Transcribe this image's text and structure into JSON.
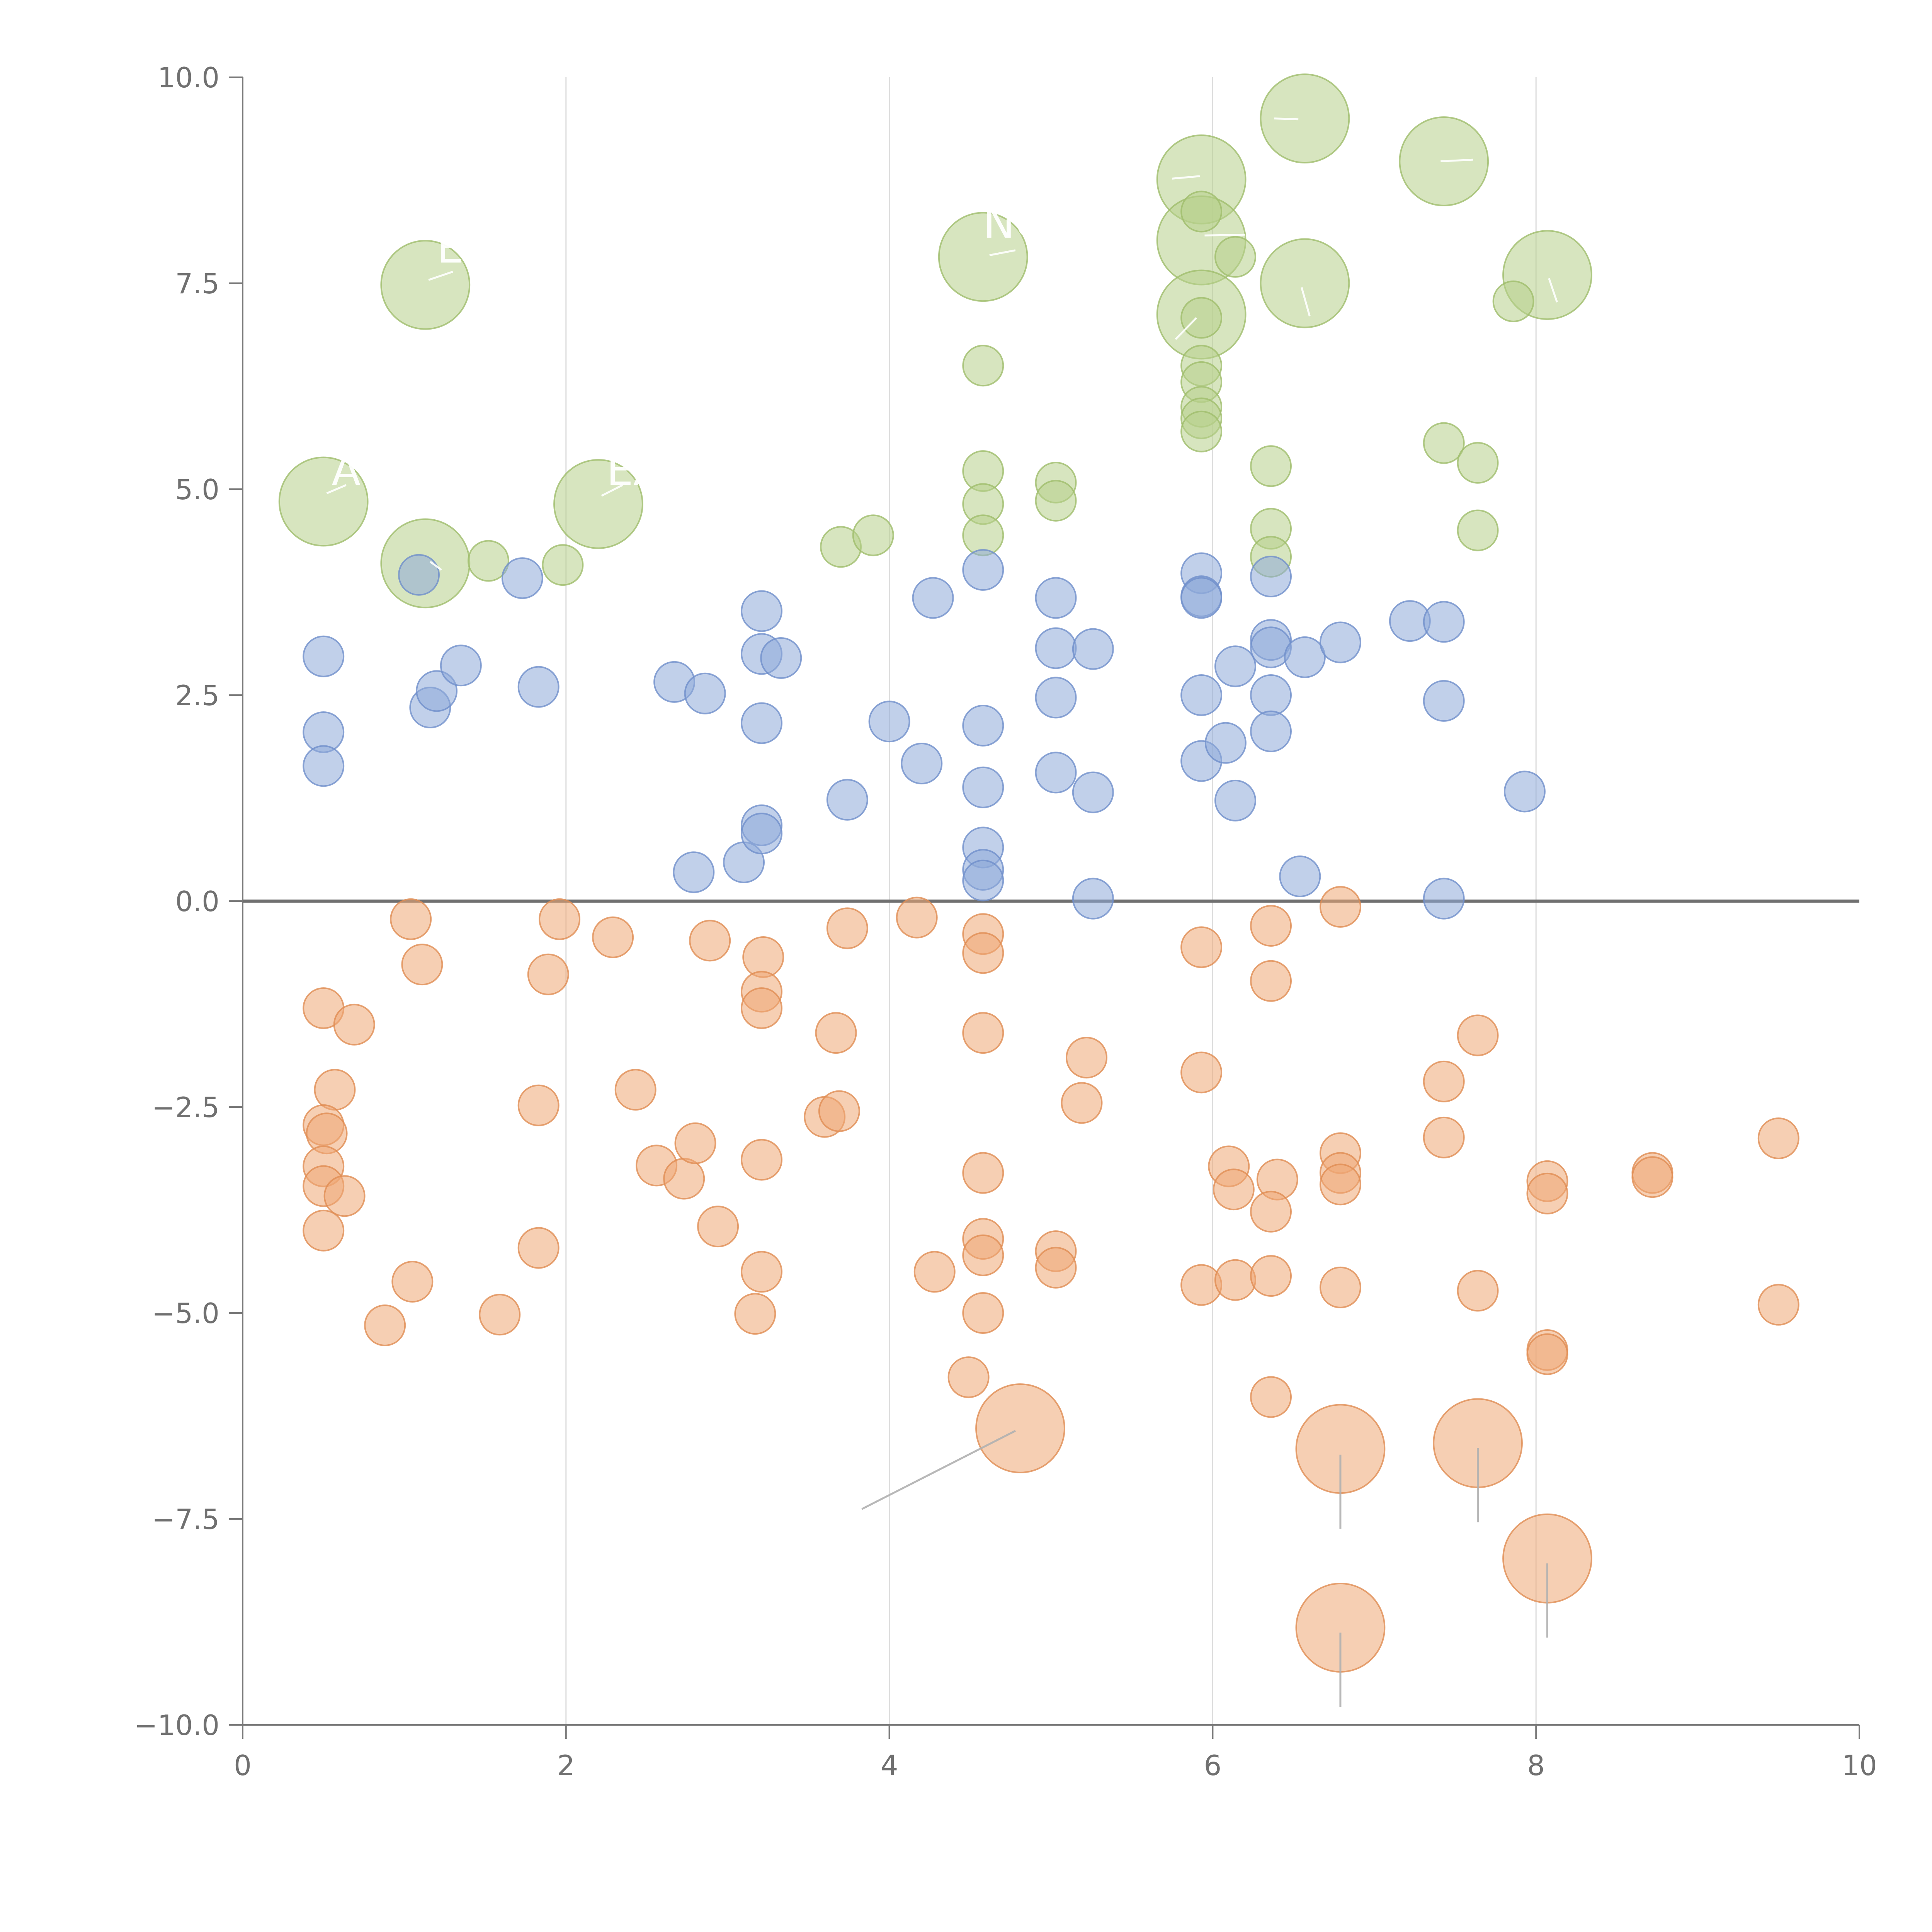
{
  "chart_data": {
    "type": "scatter",
    "title": "",
    "xlabel": "",
    "ylabel": "",
    "xlim": [
      0,
      10
    ],
    "ylim": [
      -10,
      10
    ],
    "x_ticks": [
      "0",
      "2",
      "4",
      "6",
      "8",
      "10"
    ],
    "y_ticks": [
      "10.0",
      "7.5",
      "5.0",
      "2.5",
      "0.0",
      "−2.5",
      "−5.0",
      "−7.5",
      "−10.0"
    ],
    "grid": "vertical",
    "zero_line": true,
    "legend": "none",
    "colors": {
      "green_fill": "#b7d08a",
      "green_stroke": "#9fbd6c",
      "blue_fill": "#8eaad9",
      "blue_stroke": "#6f8fcb",
      "orange_fill": "#eea774",
      "orange_stroke": "#e08c52"
    },
    "series": [
      {
        "color_key": "green",
        "points": [
          [
            0.5,
            4.85,
            2.2
          ],
          [
            1.13,
            7.48,
            2.2
          ],
          [
            1.13,
            4.1,
            2.2
          ],
          [
            2.2,
            4.82,
            2.2
          ],
          [
            4.58,
            7.82,
            2.2
          ],
          [
            5.93,
            8.76,
            2.2
          ],
          [
            5.93,
            8.02,
            2.2
          ],
          [
            5.93,
            7.12,
            2.2
          ],
          [
            6.57,
            9.5,
            2.2
          ],
          [
            6.57,
            7.5,
            2.2
          ],
          [
            7.43,
            8.98,
            2.2
          ],
          [
            8.07,
            7.6,
            2.2
          ],
          [
            1.52,
            4.13,
            1
          ],
          [
            1.98,
            4.08,
            1
          ],
          [
            3.7,
            4.3,
            1
          ],
          [
            3.9,
            4.44,
            1
          ],
          [
            4.58,
            6.5,
            1
          ],
          [
            4.58,
            5.22,
            1
          ],
          [
            4.58,
            4.82,
            1
          ],
          [
            4.58,
            4.44,
            1
          ],
          [
            5.03,
            5.08,
            1
          ],
          [
            5.03,
            4.86,
            1
          ],
          [
            5.93,
            8.37,
            1
          ],
          [
            5.93,
            7.08,
            1
          ],
          [
            5.93,
            6.5,
            1
          ],
          [
            5.93,
            6.3,
            1
          ],
          [
            5.93,
            6.0,
            1
          ],
          [
            5.93,
            5.86,
            1
          ],
          [
            5.93,
            5.7,
            1
          ],
          [
            6.14,
            7.82,
            1
          ],
          [
            6.36,
            5.28,
            1
          ],
          [
            6.36,
            4.52,
            1
          ],
          [
            6.36,
            4.18,
            1
          ],
          [
            7.43,
            5.56,
            1
          ],
          [
            7.64,
            5.32,
            1
          ],
          [
            7.64,
            4.5,
            1
          ],
          [
            7.86,
            7.28,
            1
          ]
        ]
      },
      {
        "color_key": "blue",
        "points": [
          [
            0.5,
            2.97,
            1
          ],
          [
            0.5,
            2.05,
            1
          ],
          [
            0.5,
            1.64,
            1
          ],
          [
            1.09,
            3.96,
            1
          ],
          [
            1.16,
            2.35,
            1
          ],
          [
            1.2,
            2.55,
            1
          ],
          [
            1.35,
            2.86,
            1
          ],
          [
            1.73,
            3.92,
            1
          ],
          [
            1.83,
            2.6,
            1
          ],
          [
            2.67,
            2.66,
            1
          ],
          [
            2.86,
            2.52,
            1
          ],
          [
            2.79,
            0.35,
            1
          ],
          [
            3.1,
            0.47,
            1
          ],
          [
            3.21,
            3.52,
            1
          ],
          [
            3.21,
            3.0,
            1
          ],
          [
            3.33,
            2.95,
            1
          ],
          [
            3.21,
            2.16,
            1
          ],
          [
            3.21,
            0.92,
            1
          ],
          [
            3.21,
            0.82,
            1
          ],
          [
            3.74,
            1.23,
            1
          ],
          [
            4.0,
            2.18,
            1
          ],
          [
            4.2,
            1.67,
            1
          ],
          [
            4.27,
            3.68,
            1
          ],
          [
            4.58,
            4.02,
            1
          ],
          [
            4.58,
            2.13,
            1
          ],
          [
            4.58,
            1.38,
            1
          ],
          [
            4.58,
            0.65,
            1
          ],
          [
            4.58,
            0.38,
            1
          ],
          [
            4.58,
            0.25,
            1
          ],
          [
            5.03,
            3.68,
            1
          ],
          [
            5.03,
            3.07,
            1
          ],
          [
            5.03,
            2.47,
            1
          ],
          [
            5.03,
            1.56,
            1
          ],
          [
            5.26,
            3.06,
            1
          ],
          [
            5.26,
            1.32,
            1
          ],
          [
            5.26,
            0.03,
            1
          ],
          [
            5.93,
            3.98,
            1
          ],
          [
            5.93,
            3.7,
            1
          ],
          [
            5.93,
            3.68,
            1
          ],
          [
            5.93,
            2.5,
            1
          ],
          [
            5.93,
            1.7,
            1
          ],
          [
            6.08,
            1.92,
            1
          ],
          [
            6.14,
            2.85,
            1
          ],
          [
            6.14,
            1.22,
            1
          ],
          [
            6.36,
            3.94,
            1
          ],
          [
            6.36,
            3.17,
            1
          ],
          [
            6.36,
            3.08,
            1
          ],
          [
            6.36,
            2.5,
            1
          ],
          [
            6.36,
            2.06,
            1
          ],
          [
            6.57,
            2.96,
            1
          ],
          [
            6.54,
            0.3,
            1
          ],
          [
            6.79,
            3.14,
            1
          ],
          [
            7.22,
            3.4,
            1
          ],
          [
            7.43,
            3.39,
            1
          ],
          [
            7.43,
            2.43,
            1
          ],
          [
            7.43,
            0.03,
            1
          ],
          [
            7.93,
            1.33,
            1
          ]
        ]
      },
      {
        "color_key": "orange",
        "points": [
          [
            1.04,
            -0.22,
            1
          ],
          [
            1.11,
            -0.77,
            1
          ],
          [
            1.96,
            -0.22,
            1
          ],
          [
            2.29,
            -0.44,
            1
          ],
          [
            2.89,
            -0.48,
            1
          ],
          [
            3.22,
            -0.68,
            1
          ],
          [
            3.21,
            -1.1,
            1
          ],
          [
            3.21,
            -1.3,
            1
          ],
          [
            3.67,
            -1.6,
            1
          ],
          [
            3.74,
            -0.33,
            1
          ],
          [
            4.17,
            -0.2,
            1
          ],
          [
            4.58,
            -0.4,
            1
          ],
          [
            4.58,
            -0.63,
            1
          ],
          [
            4.58,
            -1.6,
            1
          ],
          [
            0.5,
            -1.3,
            1
          ],
          [
            0.69,
            -1.5,
            1
          ],
          [
            0.57,
            -2.29,
            1
          ],
          [
            0.5,
            -2.72,
            1
          ],
          [
            0.52,
            -2.82,
            1
          ],
          [
            0.5,
            -3.22,
            1
          ],
          [
            0.5,
            -3.46,
            1
          ],
          [
            0.63,
            -3.58,
            1
          ],
          [
            0.5,
            -4.0,
            1
          ],
          [
            0.88,
            -5.15,
            1
          ],
          [
            1.05,
            -4.62,
            1
          ],
          [
            1.59,
            -5.02,
            1
          ],
          [
            1.83,
            -4.21,
            1
          ],
          [
            1.83,
            -2.48,
            1
          ],
          [
            1.89,
            -0.89,
            1
          ],
          [
            2.43,
            -2.29,
            1
          ],
          [
            2.56,
            -3.21,
            1
          ],
          [
            2.73,
            -3.37,
            1
          ],
          [
            2.8,
            -2.94,
            1
          ],
          [
            2.94,
            -3.95,
            1
          ],
          [
            3.21,
            -3.14,
            1
          ],
          [
            3.21,
            -4.5,
            1
          ],
          [
            3.17,
            -5.01,
            1
          ],
          [
            3.6,
            -2.62,
            1
          ],
          [
            3.69,
            -2.55,
            1
          ],
          [
            4.28,
            -4.5,
            1
          ],
          [
            4.49,
            -5.78,
            1
          ],
          [
            4.58,
            -3.3,
            1
          ],
          [
            4.58,
            -4.1,
            1
          ],
          [
            4.58,
            -4.3,
            1
          ],
          [
            4.58,
            -5.0,
            1
          ],
          [
            5.03,
            -4.25,
            1
          ],
          [
            5.03,
            -4.45,
            1
          ],
          [
            5.19,
            -2.45,
            1
          ],
          [
            5.22,
            -1.9,
            1
          ],
          [
            5.93,
            -0.56,
            1
          ],
          [
            5.93,
            -2.08,
            1
          ],
          [
            5.93,
            -4.66,
            1
          ],
          [
            6.1,
            -3.22,
            1
          ],
          [
            6.13,
            -3.5,
            1
          ],
          [
            6.14,
            -4.6,
            1
          ],
          [
            6.36,
            -0.3,
            1
          ],
          [
            6.36,
            -0.97,
            1
          ],
          [
            6.4,
            -3.38,
            1
          ],
          [
            6.36,
            -3.77,
            1
          ],
          [
            6.36,
            -4.55,
            1
          ],
          [
            6.36,
            -6.02,
            1
          ],
          [
            6.79,
            -0.07,
            1
          ],
          [
            6.79,
            -3.06,
            1
          ],
          [
            6.79,
            -3.3,
            1
          ],
          [
            6.79,
            -3.44,
            1
          ],
          [
            6.79,
            -4.69,
            1
          ],
          [
            7.43,
            -2.19,
            1
          ],
          [
            7.43,
            -2.87,
            1
          ],
          [
            7.64,
            -1.63,
            1
          ],
          [
            7.64,
            -4.73,
            1
          ],
          [
            8.07,
            -3.4,
            1
          ],
          [
            8.07,
            -3.55,
            1
          ],
          [
            8.07,
            -5.45,
            1
          ],
          [
            8.07,
            -5.5,
            1
          ],
          [
            8.72,
            -3.3,
            1
          ],
          [
            8.72,
            -3.35,
            1
          ],
          [
            9.5,
            -2.88,
            1
          ],
          [
            9.5,
            -4.9,
            1
          ],
          [
            4.81,
            -6.4,
            2.2
          ],
          [
            6.79,
            -6.65,
            2.2
          ],
          [
            6.79,
            -8.82,
            2.2
          ],
          [
            7.64,
            -6.58,
            2.2
          ],
          [
            8.07,
            -7.98,
            2.2
          ]
        ]
      }
    ],
    "leader_lines": [
      {
        "color": "white",
        "from": [
          0.52,
          4.95
        ],
        "to": [
          0.64,
          5.05
        ]
      },
      {
        "color": "white",
        "from": [
          1.15,
          7.54
        ],
        "to": [
          1.3,
          7.64
        ]
      },
      {
        "color": "white",
        "from": [
          1.16,
          4.12
        ],
        "to": [
          1.23,
          4.02
        ]
      },
      {
        "color": "white",
        "from": [
          2.22,
          4.92
        ],
        "to": [
          2.35,
          5.05
        ]
      },
      {
        "color": "white",
        "from": [
          4.62,
          7.84
        ],
        "to": [
          4.78,
          7.9
        ]
      },
      {
        "color": "white",
        "from": [
          5.92,
          8.8
        ],
        "to": [
          5.75,
          8.77
        ]
      },
      {
        "color": "white",
        "from": [
          5.95,
          8.08
        ],
        "to": [
          6.2,
          8.09
        ]
      },
      {
        "color": "white",
        "from": [
          5.9,
          7.08
        ],
        "to": [
          5.77,
          6.82
        ]
      },
      {
        "color": "white",
        "from": [
          6.53,
          9.49
        ],
        "to": [
          6.38,
          9.5
        ]
      },
      {
        "color": "white",
        "from": [
          6.55,
          7.45
        ],
        "to": [
          6.6,
          7.1
        ]
      },
      {
        "color": "white",
        "from": [
          7.41,
          8.98
        ],
        "to": [
          7.61,
          9.0
        ]
      },
      {
        "color": "white",
        "from": [
          8.08,
          7.56
        ],
        "to": [
          8.13,
          7.27
        ]
      },
      {
        "color": "gray",
        "from": [
          4.78,
          -6.43
        ],
        "to": [
          3.83,
          -7.38
        ]
      },
      {
        "color": "gray",
        "from": [
          6.79,
          -6.72
        ],
        "to": [
          6.79,
          -7.62
        ]
      },
      {
        "color": "gray",
        "from": [
          7.64,
          -6.64
        ],
        "to": [
          7.64,
          -7.54
        ]
      },
      {
        "color": "gray",
        "from": [
          8.07,
          -8.04
        ],
        "to": [
          8.07,
          -8.94
        ]
      },
      {
        "color": "gray",
        "from": [
          6.79,
          -8.88
        ],
        "to": [
          6.79,
          -9.78
        ]
      }
    ],
    "bubble_labels": [
      {
        "text": "E",
        "x": 1.2,
        "y": 7.75
      },
      {
        "text": "NC",
        "x": 4.58,
        "y": 8.05
      },
      {
        "text": "A",
        "x": 0.55,
        "y": 5.05
      },
      {
        "text": "EA",
        "x": 2.25,
        "y": 5.05
      }
    ]
  }
}
